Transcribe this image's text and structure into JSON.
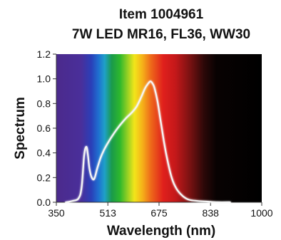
{
  "chart_data": {
    "type": "line",
    "title": "Item 1004961",
    "subtitle": "7W LED MR16, FL36, WW30",
    "xlabel": "Wavelength (nm)",
    "ylabel": "Spectrum",
    "xlim": [
      350,
      1000
    ],
    "ylim": [
      0,
      1.2
    ],
    "x_ticks": [
      "350",
      "513",
      "675",
      "838",
      "1000"
    ],
    "y_ticks": [
      "0.0",
      "0.2",
      "0.4",
      "0.6",
      "0.8",
      "1.0",
      "1.2"
    ],
    "grid": false,
    "background": "visible light spectrum gradient",
    "series": [
      {
        "color": "#f5f5f5",
        "x": [
          380,
          400,
          420,
          430,
          438,
          445,
          450,
          455,
          462,
          470,
          480,
          490,
          500,
          513,
          530,
          550,
          570,
          590,
          605,
          620,
          630,
          640,
          648,
          655,
          660,
          670,
          680,
          690,
          700,
          715,
          730,
          750,
          770,
          800,
          830,
          860,
          900
        ],
        "y": [
          0.0,
          0.01,
          0.03,
          0.12,
          0.38,
          0.45,
          0.38,
          0.27,
          0.2,
          0.19,
          0.28,
          0.36,
          0.42,
          0.48,
          0.55,
          0.62,
          0.68,
          0.73,
          0.78,
          0.86,
          0.92,
          0.96,
          0.98,
          0.96,
          0.93,
          0.82,
          0.66,
          0.5,
          0.36,
          0.2,
          0.11,
          0.05,
          0.02,
          0.01,
          0.005,
          0.0,
          0.0
        ]
      }
    ]
  }
}
